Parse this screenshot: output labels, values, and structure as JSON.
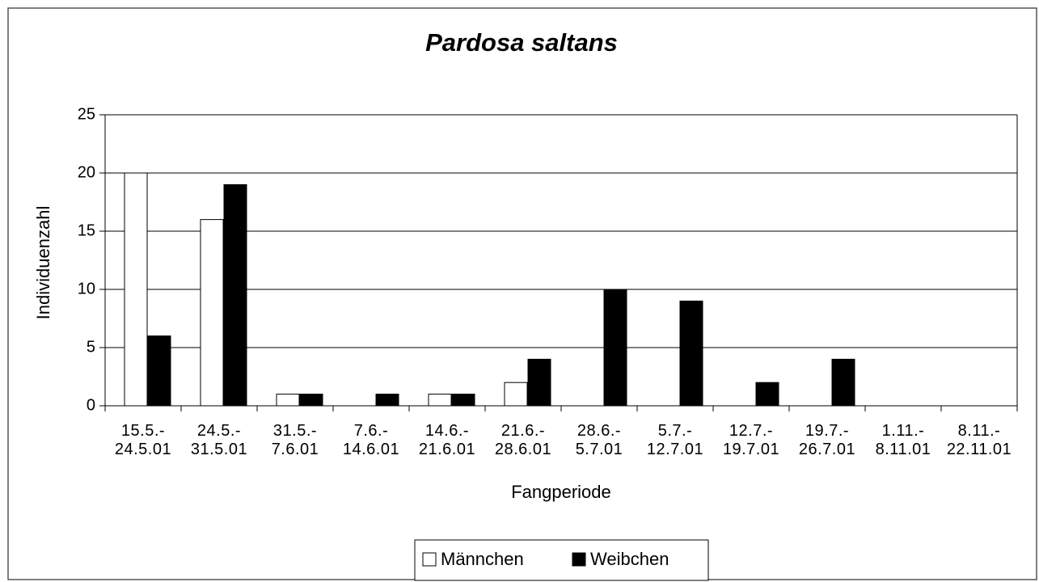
{
  "chart_data": {
    "type": "bar",
    "title": "Pardosa saltans",
    "x_label": "Fangperiode",
    "y_label": "Individuenzahl",
    "categories": [
      "15.5.-\n24.5.01",
      "24.5.-\n31.5.01",
      "31.5.-\n7.6.01",
      "7.6.-\n14.6.01",
      "14.6.-\n21.6.01",
      "21.6.-\n28.6.01",
      "28.6.-\n5.7.01",
      "5.7.-\n12.7.01",
      "12.7.-\n19.7.01",
      "19.7.-\n26.7.01",
      "1.11.-\n8.11.01",
      "8.11.-\n22.11.01"
    ],
    "series": [
      {
        "name": "Männchen",
        "color": "#ffffff",
        "values": [
          20,
          16,
          1,
          0,
          1,
          2,
          0,
          0,
          0,
          0,
          0,
          0
        ]
      },
      {
        "name": "Weibchen",
        "color": "#000000",
        "values": [
          6,
          19,
          1,
          1,
          1,
          4,
          10,
          9,
          2,
          4,
          0,
          0
        ]
      }
    ],
    "ylim": [
      0,
      25
    ],
    "yticks": [
      0,
      5,
      10,
      15,
      20,
      25
    ],
    "grid": true,
    "legend": "bottom"
  }
}
